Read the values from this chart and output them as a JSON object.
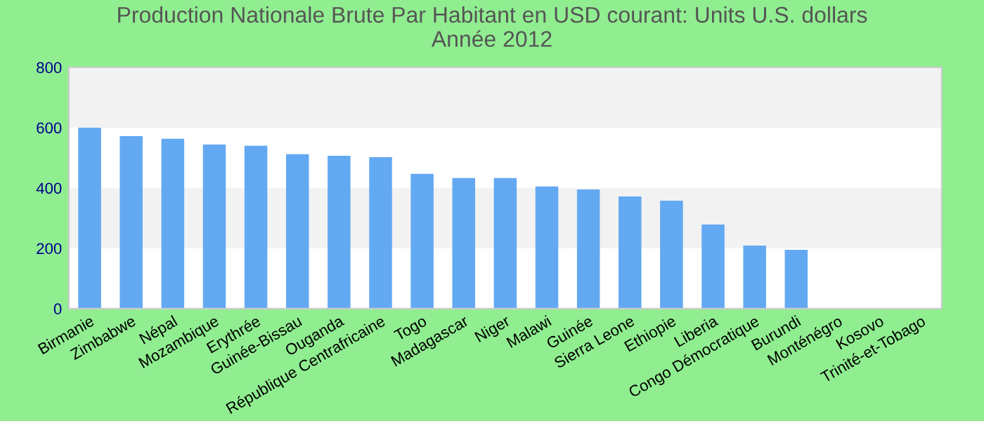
{
  "chart_data": {
    "type": "bar",
    "title": "Production Nationale Brute Par Habitant en USD courant: Units U.S. dollars\nAnnée 2012",
    "categories": [
      "Birmanie",
      "Zimbabwe",
      "Népal",
      "Mozambique",
      "Erythrée",
      "Guinée-Bissau",
      "Ouganda",
      "République Centrafricaine",
      "Togo",
      "Madagascar",
      "Niger",
      "Malawi",
      "Guinée",
      "Sierra Leone",
      "Ethiopie",
      "Liberia",
      "Congo Démocratique",
      "Burundi",
      "Monténégro",
      "Kosovo",
      "Trinité-et-Tobago"
    ],
    "series": [
      {
        "color": "#63a9f2",
        "values": [
          600,
          572,
          563,
          544,
          540,
          512,
          507,
          502,
          447,
          433,
          433,
          405,
          395,
          372,
          358,
          279,
          209,
          195,
          null,
          null,
          null
        ]
      }
    ],
    "ylim": [
      0,
      800
    ],
    "yticks": [
      0,
      200,
      400,
      600,
      800
    ],
    "grid": false,
    "legend": false,
    "bands": [
      {
        "axis": "y",
        "from": 200,
        "to": 400,
        "label": null,
        "color": "#f2f2f2"
      },
      {
        "axis": "y",
        "from": 600,
        "to": 800,
        "label": null,
        "color": "#f2f2f2"
      }
    ]
  }
}
